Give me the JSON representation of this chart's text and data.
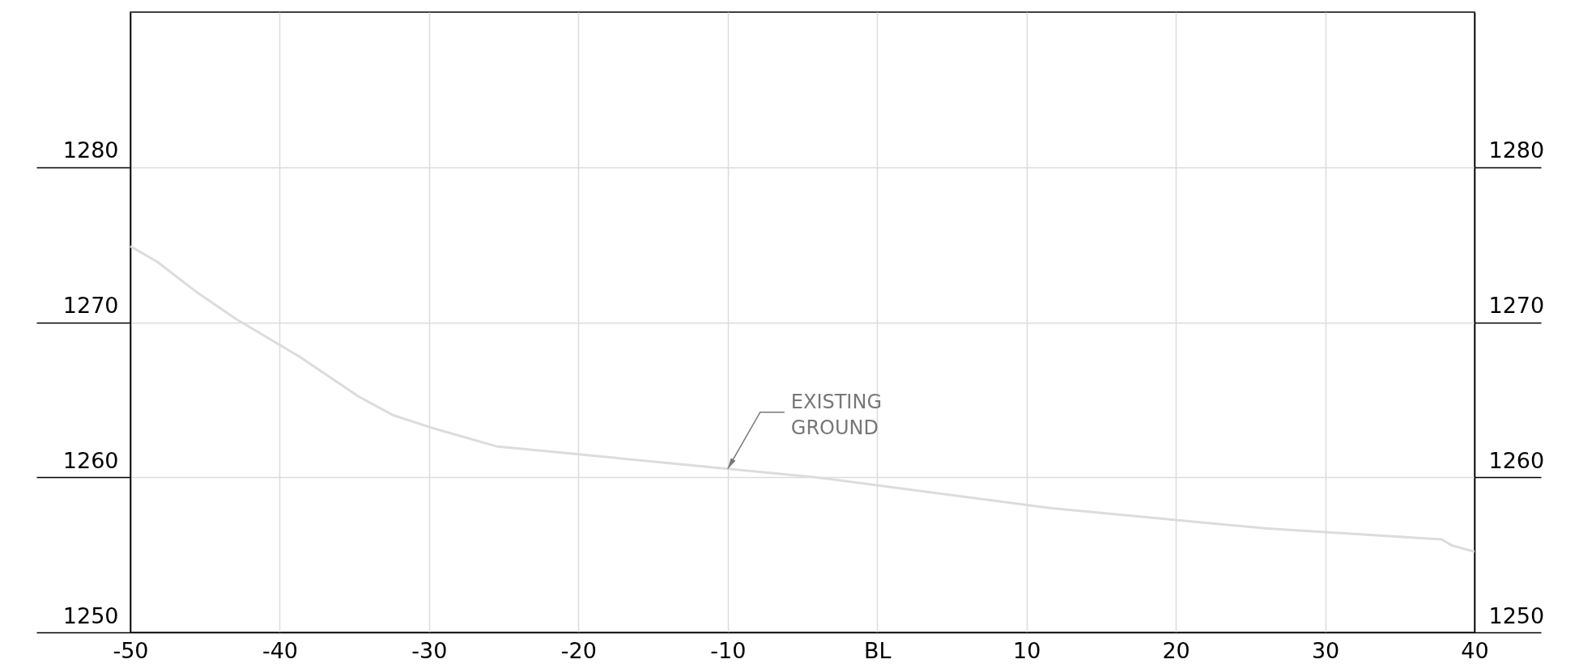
{
  "chart_data": {
    "type": "line",
    "x": [
      -50,
      -48.2,
      -45.5,
      -42.9,
      -38.7,
      -34.7,
      -32.4,
      -29.5,
      -25.5,
      -10,
      -4.1,
      11.7,
      26.1,
      37.8,
      38.5,
      40
    ],
    "series": [
      {
        "color": "#dcdcdc",
        "values": [
          1274.9,
          1273.9,
          1271.9,
          1270.2,
          1267.8,
          1265.2,
          1264.0,
          1263.1,
          1262.0,
          1260.55,
          1260.0,
          1258.0,
          1256.7,
          1256.0,
          1255.6,
          1255.2
        ]
      }
    ],
    "xlim": [
      -50,
      40
    ],
    "xticks": [
      -50,
      -40,
      -30,
      -20,
      -10,
      {
        "value": 0,
        "label": "BL"
      },
      10,
      20,
      30,
      40
    ],
    "ylim": [
      1250,
      1290
    ],
    "yticks": [
      1250,
      1260,
      1270,
      1280
    ],
    "y2lim": [
      1250,
      1290
    ],
    "y2ticks": [
      1250,
      1260,
      1270,
      1280
    ],
    "annotations": [
      {
        "text": "EXISTING GROUND",
        "x": -10,
        "y": 1260.55
      }
    ],
    "grid": true,
    "marker": "none",
    "line_style": "solid"
  }
}
